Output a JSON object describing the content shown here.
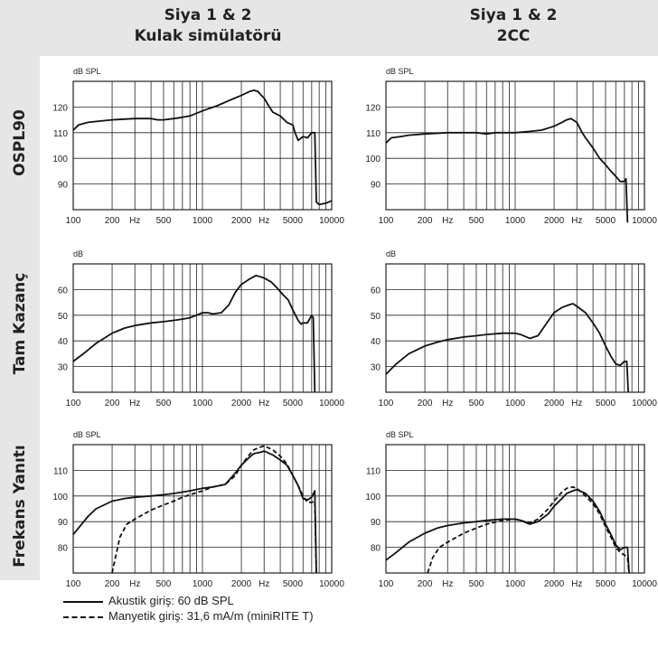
{
  "columns": [
    {
      "line1": "Siya 1 & 2",
      "line2": "Kulak simülatörü"
    },
    {
      "line1": "Siya 1 & 2",
      "line2": "2CC"
    }
  ],
  "rows": [
    {
      "label": "OSPL90"
    },
    {
      "label": "Tam Kazanç"
    },
    {
      "label": "Frekans Yanıtı"
    }
  ],
  "x_tick_labels": [
    "100",
    "200",
    "Hz",
    "500",
    "1000",
    "2000",
    "Hz",
    "5000",
    "10000"
  ],
  "legend": [
    {
      "style": "solid",
      "label": "Akustik giriş: 60 dB SPL"
    },
    {
      "style": "dashed",
      "label": "Manyetik giriş: 31,6 mA/m (miniRITE T)"
    }
  ],
  "chart_data": [
    {
      "type": "line",
      "title": "",
      "ylabel": "dB SPL",
      "xlabel": "",
      "x_scale": "log",
      "xlim": [
        100,
        10000
      ],
      "ylim": [
        80,
        130
      ],
      "yticks": [
        90,
        100,
        110,
        120
      ],
      "series": [
        {
          "style": "solid",
          "x": [
            100,
            110,
            130,
            160,
            200,
            300,
            400,
            450,
            500,
            600,
            700,
            800,
            1000,
            1300,
            1600,
            2000,
            2300,
            2500,
            2700,
            2800,
            3000,
            3300,
            3500,
            4000,
            4500,
            5000,
            5200,
            5500,
            6000,
            6500,
            7000,
            7400,
            7600,
            8000,
            9000,
            10000
          ],
          "y": [
            111,
            113,
            114,
            114.5,
            115,
            115.5,
            115.5,
            115,
            115,
            115.5,
            116,
            116.5,
            118.5,
            120.5,
            122.5,
            124.5,
            126,
            126.5,
            126,
            125,
            123.5,
            120,
            118,
            116.5,
            114,
            113,
            110,
            107,
            108.5,
            108,
            110,
            110,
            83,
            82,
            82.5,
            83.5
          ]
        }
      ]
    },
    {
      "type": "line",
      "title": "",
      "ylabel": "dB SPL",
      "xlabel": "",
      "x_scale": "log",
      "xlim": [
        100,
        10000
      ],
      "ylim": [
        80,
        130
      ],
      "yticks": [
        90,
        100,
        110,
        120
      ],
      "series": [
        {
          "style": "solid",
          "x": [
            100,
            110,
            130,
            150,
            200,
            300,
            400,
            500,
            600,
            700,
            800,
            1000,
            1300,
            1600,
            2000,
            2300,
            2500,
            2700,
            3000,
            3300,
            3500,
            4000,
            4500,
            5000,
            5500,
            6000,
            6500,
            7000,
            7200,
            7400
          ],
          "y": [
            106,
            108,
            108.5,
            109,
            109.5,
            110,
            110,
            110,
            109.5,
            110,
            110,
            110,
            110.5,
            111,
            112.5,
            114,
            115,
            115.5,
            114,
            110,
            108,
            104,
            100,
            97.5,
            95,
            93,
            91,
            91,
            92,
            75
          ]
        }
      ]
    },
    {
      "type": "line",
      "title": "",
      "ylabel": "dB",
      "xlabel": "",
      "x_scale": "log",
      "xlim": [
        100,
        10000
      ],
      "ylim": [
        20,
        70
      ],
      "yticks": [
        30,
        40,
        50,
        60
      ],
      "series": [
        {
          "style": "solid",
          "x": [
            100,
            120,
            150,
            200,
            250,
            300,
            400,
            500,
            600,
            700,
            800,
            900,
            1000,
            1100,
            1200,
            1400,
            1600,
            1800,
            2000,
            2300,
            2600,
            2800,
            3000,
            3400,
            3800,
            4200,
            4600,
            5000,
            5500,
            5800,
            6000,
            6500,
            7000,
            7200,
            7400
          ],
          "y": [
            32,
            35,
            39,
            43,
            45,
            46,
            47,
            47.5,
            48,
            48.5,
            49,
            50,
            51,
            51,
            50.5,
            51,
            54,
            59,
            62,
            64,
            65.5,
            65,
            64.5,
            63,
            60.5,
            58,
            56,
            52,
            48,
            46.5,
            47,
            47,
            50,
            49,
            20
          ]
        }
      ]
    },
    {
      "type": "line",
      "title": "",
      "ylabel": "dB",
      "xlabel": "",
      "x_scale": "log",
      "xlim": [
        100,
        10000
      ],
      "ylim": [
        20,
        70
      ],
      "yticks": [
        30,
        40,
        50,
        60
      ],
      "series": [
        {
          "style": "solid",
          "x": [
            100,
            120,
            150,
            200,
            250,
            300,
            400,
            500,
            600,
            800,
            1000,
            1100,
            1300,
            1500,
            1700,
            2000,
            2300,
            2600,
            2800,
            3000,
            3500,
            4000,
            4500,
            5000,
            5500,
            6000,
            6500,
            7000,
            7300,
            7500
          ],
          "y": [
            27,
            31,
            35,
            38,
            39.5,
            40.5,
            41.5,
            42,
            42.5,
            43,
            43,
            42.5,
            41,
            42,
            46,
            51,
            53,
            54,
            54.5,
            53.5,
            51,
            47,
            43,
            38,
            34,
            31,
            30.5,
            32,
            32,
            20
          ]
        }
      ]
    },
    {
      "type": "line",
      "title": "",
      "ylabel": "dB SPL",
      "xlabel": "",
      "x_scale": "log",
      "xlim": [
        100,
        10000
      ],
      "ylim": [
        70,
        120
      ],
      "yticks": [
        80,
        90,
        100,
        110
      ],
      "series": [
        {
          "style": "solid",
          "x": [
            100,
            130,
            150,
            200,
            250,
            300,
            400,
            500,
            600,
            700,
            800,
            1000,
            1200,
            1500,
            1800,
            2000,
            2300,
            2500,
            2800,
            3000,
            3500,
            4000,
            4500,
            5000,
            5500,
            6000,
            6500,
            7000,
            7400,
            7600
          ],
          "y": [
            85,
            92,
            95,
            98,
            99,
            99.5,
            100,
            100.5,
            101,
            101.5,
            102,
            103,
            103.5,
            104.5,
            109,
            112,
            115,
            116.5,
            117,
            117.5,
            116,
            114,
            112,
            108,
            104,
            99,
            98.5,
            99.5,
            102,
            70
          ]
        },
        {
          "style": "dashed",
          "x": [
            200,
            230,
            260,
            300,
            400,
            500,
            600,
            700,
            800,
            1000,
            1200,
            1500,
            1800,
            2000,
            2300,
            2500,
            2800,
            3000,
            3500,
            4000,
            4500,
            5000,
            5500,
            6000,
            6500,
            7000,
            7400,
            7600
          ],
          "y": [
            70,
            84,
            89,
            91,
            94.5,
            96.5,
            98,
            99.5,
            100.5,
            102,
            103.5,
            104.5,
            108,
            112,
            116,
            118,
            119,
            119.5,
            118,
            115.5,
            112.5,
            108,
            104,
            100,
            97.5,
            97.5,
            98,
            70
          ]
        }
      ]
    },
    {
      "type": "line",
      "title": "",
      "ylabel": "dB SPL",
      "xlabel": "",
      "x_scale": "log",
      "xlim": [
        100,
        10000
      ],
      "ylim": [
        70,
        120
      ],
      "yticks": [
        80,
        90,
        100,
        110
      ],
      "series": [
        {
          "style": "solid",
          "x": [
            100,
            120,
            150,
            200,
            250,
            300,
            400,
            500,
            600,
            800,
            1000,
            1100,
            1300,
            1500,
            1800,
            2000,
            2300,
            2500,
            2800,
            3000,
            3500,
            4000,
            4500,
            5000,
            5500,
            6000,
            6500,
            7000,
            7400,
            7600
          ],
          "y": [
            75,
            78,
            82,
            85.5,
            87.5,
            88.5,
            89.5,
            90,
            90.5,
            91,
            91,
            90.5,
            89,
            90,
            93,
            96,
            99,
            101,
            102,
            102.5,
            101,
            98,
            94,
            89,
            85,
            81,
            79,
            80,
            80,
            70
          ]
        },
        {
          "style": "dashed",
          "x": [
            210,
            230,
            260,
            300,
            400,
            500,
            600,
            800,
            1000,
            1100,
            1300,
            1500,
            1800,
            2000,
            2300,
            2500,
            2800,
            3000,
            3500,
            4000,
            4500,
            5000,
            5500,
            6000,
            6500,
            7000,
            7400,
            7600
          ],
          "y": [
            70,
            76,
            80,
            82,
            85.5,
            87.5,
            89,
            90.5,
            91,
            90.5,
            89.5,
            91,
            95,
            98,
            101.5,
            103,
            103.5,
            103,
            100,
            97,
            93,
            88,
            84,
            80,
            78,
            77,
            76,
            70
          ]
        }
      ]
    }
  ]
}
